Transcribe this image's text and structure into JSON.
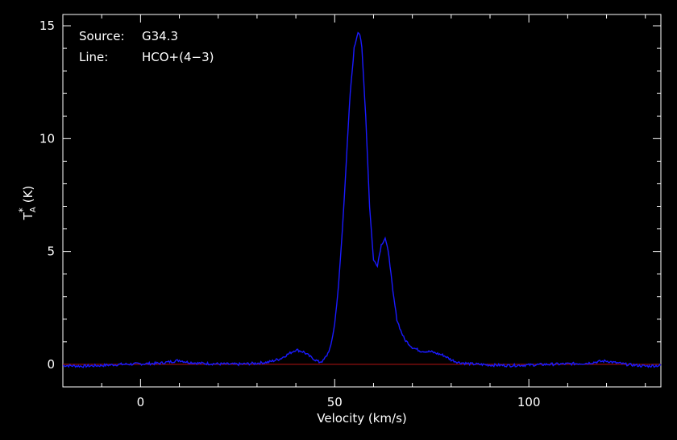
{
  "chart_data": {
    "type": "line",
    "annotations": [
      {
        "key": "Source:",
        "value": "G34.3"
      },
      {
        "key": "Line:",
        "value": "HCO+(4−3)"
      }
    ],
    "xlabel": "Velocity (km/s)",
    "ylabel": {
      "base": "T",
      "sub": "A",
      "sup": "*",
      "unit": "(K)"
    },
    "xlim": [
      -20,
      134
    ],
    "ylim": [
      -1,
      15.5
    ],
    "xticks": [
      0,
      50,
      100
    ],
    "yticks": [
      0,
      5,
      10,
      15
    ],
    "baseline": {
      "y": 0,
      "color": "#a01010"
    },
    "series": [
      {
        "color": "#1a1aff",
        "x": [
          -20,
          -15,
          -10,
          -5,
          0,
          5,
          8,
          10,
          12,
          15,
          20,
          25,
          30,
          33,
          36,
          38,
          40,
          42,
          44,
          46,
          47,
          48,
          49,
          50,
          51,
          52,
          53,
          54,
          55,
          56,
          56.5,
          57,
          58,
          59,
          60,
          61,
          62,
          63,
          64,
          65,
          66,
          67,
          68,
          70,
          72,
          75,
          78,
          80,
          82,
          85,
          90,
          95,
          100,
          105,
          110,
          115,
          118,
          120,
          122,
          125,
          130,
          134
        ],
        "y": [
          -0.05,
          -0.08,
          -0.05,
          0.0,
          0.02,
          0.05,
          0.12,
          0.18,
          0.1,
          0.05,
          0.02,
          0.0,
          0.05,
          0.1,
          0.25,
          0.45,
          0.65,
          0.55,
          0.3,
          0.1,
          0.15,
          0.4,
          0.8,
          1.8,
          3.5,
          6.0,
          9.0,
          12.0,
          14.0,
          14.75,
          14.6,
          14.0,
          11.0,
          7.0,
          4.6,
          4.4,
          5.3,
          5.6,
          4.8,
          3.2,
          2.0,
          1.5,
          1.1,
          0.75,
          0.6,
          0.55,
          0.4,
          0.2,
          0.08,
          0.02,
          -0.03,
          -0.05,
          -0.03,
          0.0,
          0.02,
          0.05,
          0.12,
          0.15,
          0.08,
          0.0,
          -0.08,
          -0.05
        ]
      }
    ]
  }
}
